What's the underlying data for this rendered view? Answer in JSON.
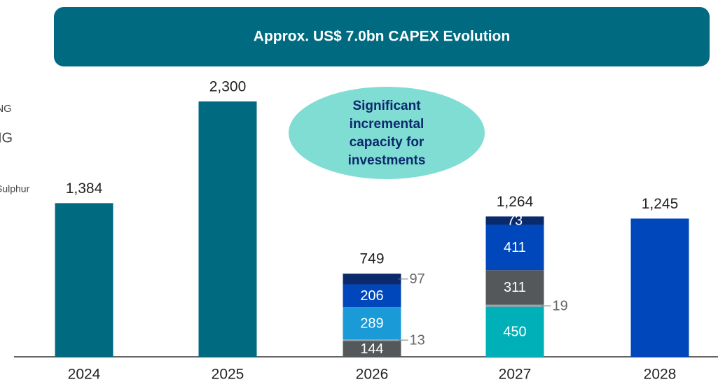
{
  "chart_data": {
    "type": "stacked-bar",
    "title": "Approx. US$ 7.0bn CAPEX Evolution",
    "callout": [
      "Significant",
      "incremental",
      "capacity for",
      "investments"
    ],
    "legend_labels": [
      "LNG",
      "NG",
      "Sulphur"
    ],
    "categories": [
      "2024",
      "2025",
      "2026",
      "2027",
      "2028"
    ],
    "totals": [
      1384,
      2300,
      749,
      1264,
      1245
    ],
    "total_labels": [
      "1,384",
      "2,300",
      "749",
      "1,264",
      "1,245"
    ],
    "stacks": [
      [
        {
          "value": 1384,
          "color": "#006a80",
          "label": "none"
        }
      ],
      [
        {
          "value": 2300,
          "color": "#006a80",
          "label": "none"
        }
      ],
      [
        {
          "value": 144,
          "color": "#54585a",
          "label": "inside"
        },
        {
          "value": 13,
          "color": "#9aa3a8",
          "label": "outside"
        },
        {
          "value": 289,
          "color": "#1a9ad6",
          "label": "inside"
        },
        {
          "value": 206,
          "color": "#0047bb",
          "label": "inside"
        },
        {
          "value": 97,
          "color": "#0b2a6b",
          "label": "outside"
        }
      ],
      [
        {
          "value": 450,
          "color": "#00b0b9",
          "label": "inside"
        },
        {
          "value": 19,
          "color": "#9aa3a8",
          "label": "outside"
        },
        {
          "value": 311,
          "color": "#54585a",
          "label": "inside"
        },
        {
          "value": 411,
          "color": "#0047bb",
          "label": "inside"
        },
        {
          "value": 73,
          "color": "#0b2a6b",
          "label": "inside"
        }
      ],
      [
        {
          "value": 1245,
          "color": "#0047bb",
          "label": "none"
        }
      ]
    ]
  }
}
